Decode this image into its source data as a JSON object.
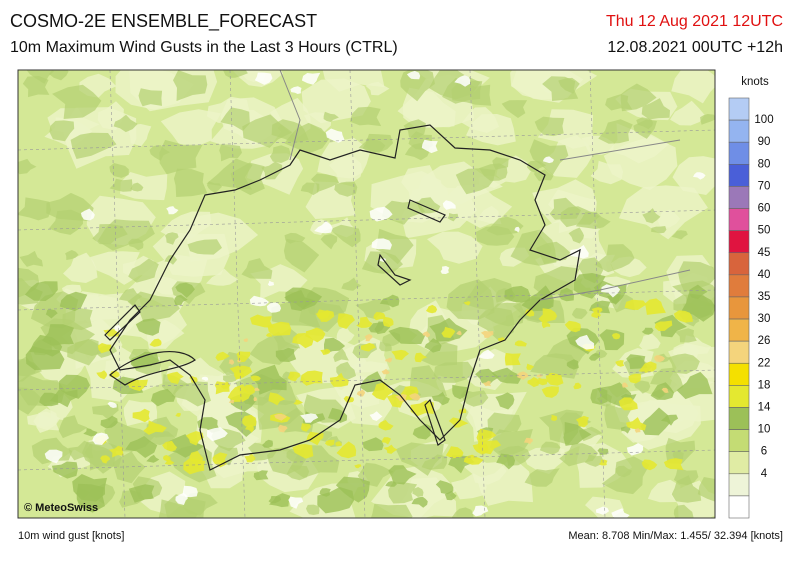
{
  "header": {
    "title": "COSMO-2E ENSEMBLE_FORECAST",
    "subtitle": "10m Maximum Wind Gusts in the Last 3 Hours (CTRL)",
    "valid_time": "Thu 12 Aug 2021 12UTC",
    "run_time": "12.08.2021 00UTC +12h"
  },
  "legend": {
    "unit": "knots",
    "labels": [
      100,
      90,
      80,
      70,
      60,
      50,
      45,
      40,
      35,
      30,
      26,
      22,
      18,
      14,
      10,
      6,
      4
    ],
    "colors": [
      "#b4ccf4",
      "#94b4f0",
      "#6f8ee6",
      "#4a5fd8",
      "#9b78b8",
      "#e0509c",
      "#e01440",
      "#d8643c",
      "#e07c3c",
      "#e8963c",
      "#f0b448",
      "#f4d47c",
      "#f4e000",
      "#e4e830",
      "#9cc058",
      "#c4dc74",
      "#e0eca4",
      "#eef4d8",
      "#ffffff"
    ]
  },
  "map": {
    "copyright": "© MeteoSwiss"
  },
  "footer": {
    "variable": "10m wind gust [knots]",
    "stats": "Mean:  8.708 Min/Max:  1.455/ 32.394 [knots]"
  }
}
